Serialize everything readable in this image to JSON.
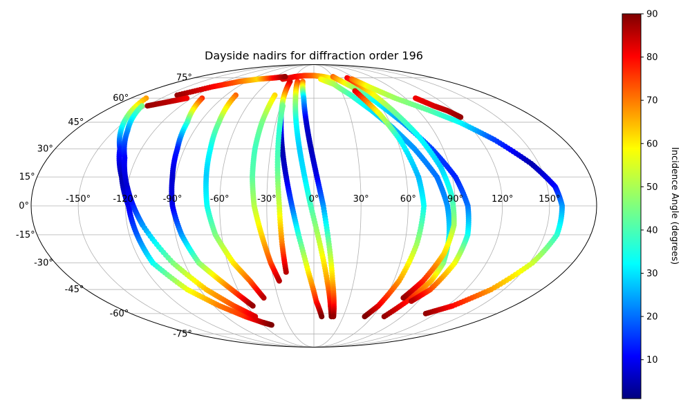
{
  "chart_data": {
    "type": "scatter",
    "projection": "mollweide",
    "title": "Dayside nadirs for diffraction order 196",
    "xlabel": "",
    "ylabel": "",
    "grid": true,
    "lon_ticks": [
      -150,
      -120,
      -90,
      -60,
      -30,
      0,
      30,
      60,
      90,
      120,
      150
    ],
    "lon_tick_labels": [
      "-150°",
      "-120°",
      "-90°",
      "-60°",
      "-30°",
      "0°",
      "30°",
      "60°",
      "90°",
      "120°",
      "150°"
    ],
    "lat_ticks": [
      -75,
      -60,
      -45,
      -30,
      -15,
      0,
      15,
      30,
      45,
      60,
      75
    ],
    "lat_tick_labels": [
      "-75°",
      "-60°",
      "-45°",
      "-30°",
      "-15°",
      "0°",
      "15°",
      "30°",
      "45°",
      "60°",
      "75°"
    ],
    "colorbar": {
      "label": "Incidence Angle (degrees)",
      "colormap": "jet",
      "range": [
        1,
        90
      ],
      "ticks": [
        10,
        20,
        30,
        40,
        50,
        60,
        70,
        80,
        90
      ],
      "tick_labels": [
        "10",
        "20",
        "30",
        "40",
        "50",
        "60",
        "70",
        "80",
        "90"
      ]
    },
    "tracks": [
      {
        "lon": [
          -165,
          -150,
          -135,
          -125,
          -118,
          -115,
          -112
        ],
        "lat": [
          60,
          45,
          30,
          15,
          0,
          -15,
          -30
        ],
        "angle": [
          65,
          40,
          15,
          5,
          10,
          20,
          35
        ]
      },
      {
        "lon": [
          -112,
          -100,
          -85,
          -70,
          -58,
          -50
        ],
        "lat": [
          -30,
          -45,
          -55,
          -62,
          -66,
          -68
        ],
        "angle": [
          35,
          55,
          68,
          75,
          85,
          90
        ]
      },
      {
        "lon": [
          -155,
          -140,
          -128,
          -120,
          -115,
          -110
        ],
        "lat": [
          55,
          40,
          25,
          10,
          0,
          -10
        ],
        "angle": [
          45,
          25,
          12,
          8,
          14,
          25
        ]
      },
      {
        "lon": [
          -110,
          -98,
          -85,
          -72,
          -60
        ],
        "lat": [
          -10,
          -30,
          -45,
          -55,
          -62
        ],
        "angle": [
          25,
          45,
          62,
          72,
          82
        ]
      },
      {
        "lon": [
          -110,
          -100,
          -95,
          -92,
          -90,
          -86,
          -80,
          -70,
          -60,
          -55
        ],
        "lat": [
          60,
          45,
          30,
          15,
          0,
          -15,
          -30,
          -40,
          -50,
          -55
        ],
        "angle": [
          75,
          40,
          15,
          8,
          10,
          25,
          45,
          62,
          78,
          88
        ]
      },
      {
        "lon": [
          -80,
          -75,
          -72,
          -70,
          -68,
          -64,
          -56,
          -48,
          -42
        ],
        "lat": [
          62,
          45,
          30,
          15,
          0,
          -15,
          -30,
          -40,
          -50
        ],
        "angle": [
          70,
          45,
          35,
          30,
          35,
          45,
          58,
          70,
          85
        ]
      },
      {
        "lon": [
          -40,
          -41,
          -41,
          -40,
          -38,
          -34,
          -30,
          -26
        ],
        "lat": [
          62,
          45,
          30,
          15,
          0,
          -15,
          -30,
          -40
        ],
        "angle": [
          60,
          45,
          40,
          42,
          50,
          60,
          72,
          85
        ]
      },
      {
        "lon": [
          -32,
          -30,
          -26,
          -22,
          -18,
          -14,
          -10,
          -4,
          2,
          8
        ],
        "lat": [
          72,
          60,
          45,
          30,
          15,
          0,
          -15,
          -35,
          -52,
          -62
        ],
        "angle": [
          85,
          60,
          15,
          5,
          8,
          20,
          38,
          58,
          76,
          90
        ]
      },
      {
        "lon": [
          -22,
          -18,
          -14,
          -10,
          -6,
          -2,
          4,
          10,
          15,
          18
        ],
        "lat": [
          72,
          60,
          45,
          30,
          15,
          0,
          -20,
          -40,
          -55,
          -62
        ],
        "angle": [
          75,
          50,
          35,
          30,
          32,
          40,
          52,
          65,
          80,
          90
        ]
      },
      {
        "lon": [
          -15,
          -10,
          -6,
          -2,
          2,
          6,
          10,
          14,
          18,
          20
        ],
        "lat": [
          72,
          60,
          45,
          30,
          15,
          0,
          -20,
          -40,
          -55,
          -62
        ],
        "angle": [
          70,
          30,
          8,
          6,
          10,
          25,
          45,
          62,
          78,
          88
        ]
      },
      {
        "lon": [
          -28,
          -26,
          -24,
          -22,
          -21,
          -20
        ],
        "lat": [
          55,
          40,
          20,
          0,
          -20,
          -35
        ],
        "angle": [
          45,
          38,
          42,
          52,
          68,
          85
        ]
      },
      {
        "lon": [
          -45,
          -30,
          -15,
          0,
          15,
          30
        ],
        "lat": [
          74,
          76,
          77,
          77,
          76,
          74
        ],
        "angle": [
          82,
          80,
          75,
          70,
          62,
          55
        ]
      },
      {
        "lon": [
          -140,
          -120,
          -100,
          -80,
          -60,
          -45
        ],
        "lat": [
          62,
          68,
          72,
          74,
          75,
          76
        ],
        "angle": [
          88,
          80,
          70,
          60,
          78,
          88
        ]
      },
      {
        "lon": [
          10,
          25,
          38,
          50,
          60,
          70,
          80,
          85,
          88,
          90,
          88,
          82,
          72
        ],
        "lat": [
          74,
          70,
          62,
          52,
          42,
          30,
          15,
          0,
          -15,
          -30,
          -40,
          -50,
          -62
        ],
        "angle": [
          58,
          50,
          40,
          32,
          28,
          25,
          22,
          25,
          32,
          45,
          62,
          75,
          88
        ]
      },
      {
        "lon": [
          30,
          45,
          58,
          70,
          82,
          92,
          98,
          100,
          98,
          92,
          84
        ],
        "lat": [
          76,
          68,
          58,
          45,
          30,
          15,
          0,
          -15,
          -30,
          -45,
          -52
        ],
        "angle": [
          70,
          50,
          35,
          25,
          18,
          15,
          22,
          35,
          55,
          72,
          85
        ]
      },
      {
        "lon": [
          50,
          60,
          68,
          76,
          84,
          88,
          90,
          88,
          82,
          75
        ],
        "lat": [
          75,
          65,
          52,
          38,
          20,
          5,
          -10,
          -25,
          -40,
          -50
        ],
        "angle": [
          80,
          60,
          45,
          35,
          30,
          38,
          48,
          60,
          75,
          88
        ]
      },
      {
        "lon": [
          45,
          55,
          62,
          68,
          70,
          68,
          64,
          58,
          52
        ],
        "lat": [
          65,
          50,
          35,
          15,
          0,
          -20,
          -40,
          -55,
          -62
        ],
        "angle": [
          82,
          55,
          35,
          28,
          35,
          48,
          65,
          80,
          90
        ]
      },
      {
        "lon": [
          55,
          65,
          80,
          100,
          115,
          130,
          145,
          155,
          158,
          158,
          152,
          140,
          125,
          110
        ],
        "lat": [
          74,
          68,
          60,
          52,
          45,
          35,
          22,
          10,
          0,
          -15,
          -30,
          -45,
          -55,
          -60
        ],
        "angle": [
          70,
          55,
          48,
          42,
          35,
          18,
          5,
          12,
          25,
          38,
          52,
          65,
          78,
          88
        ]
      },
      {
        "lon": [
          100,
          108,
          115,
          120
        ],
        "lat": [
          60,
          55,
          52,
          48
        ],
        "angle": [
          80,
          82,
          85,
          88
        ]
      },
      {
        "lon": [
          -150,
          -135,
          -125
        ],
        "lat": [
          55,
          58,
          60
        ],
        "angle": [
          88,
          85,
          80
        ]
      }
    ]
  }
}
